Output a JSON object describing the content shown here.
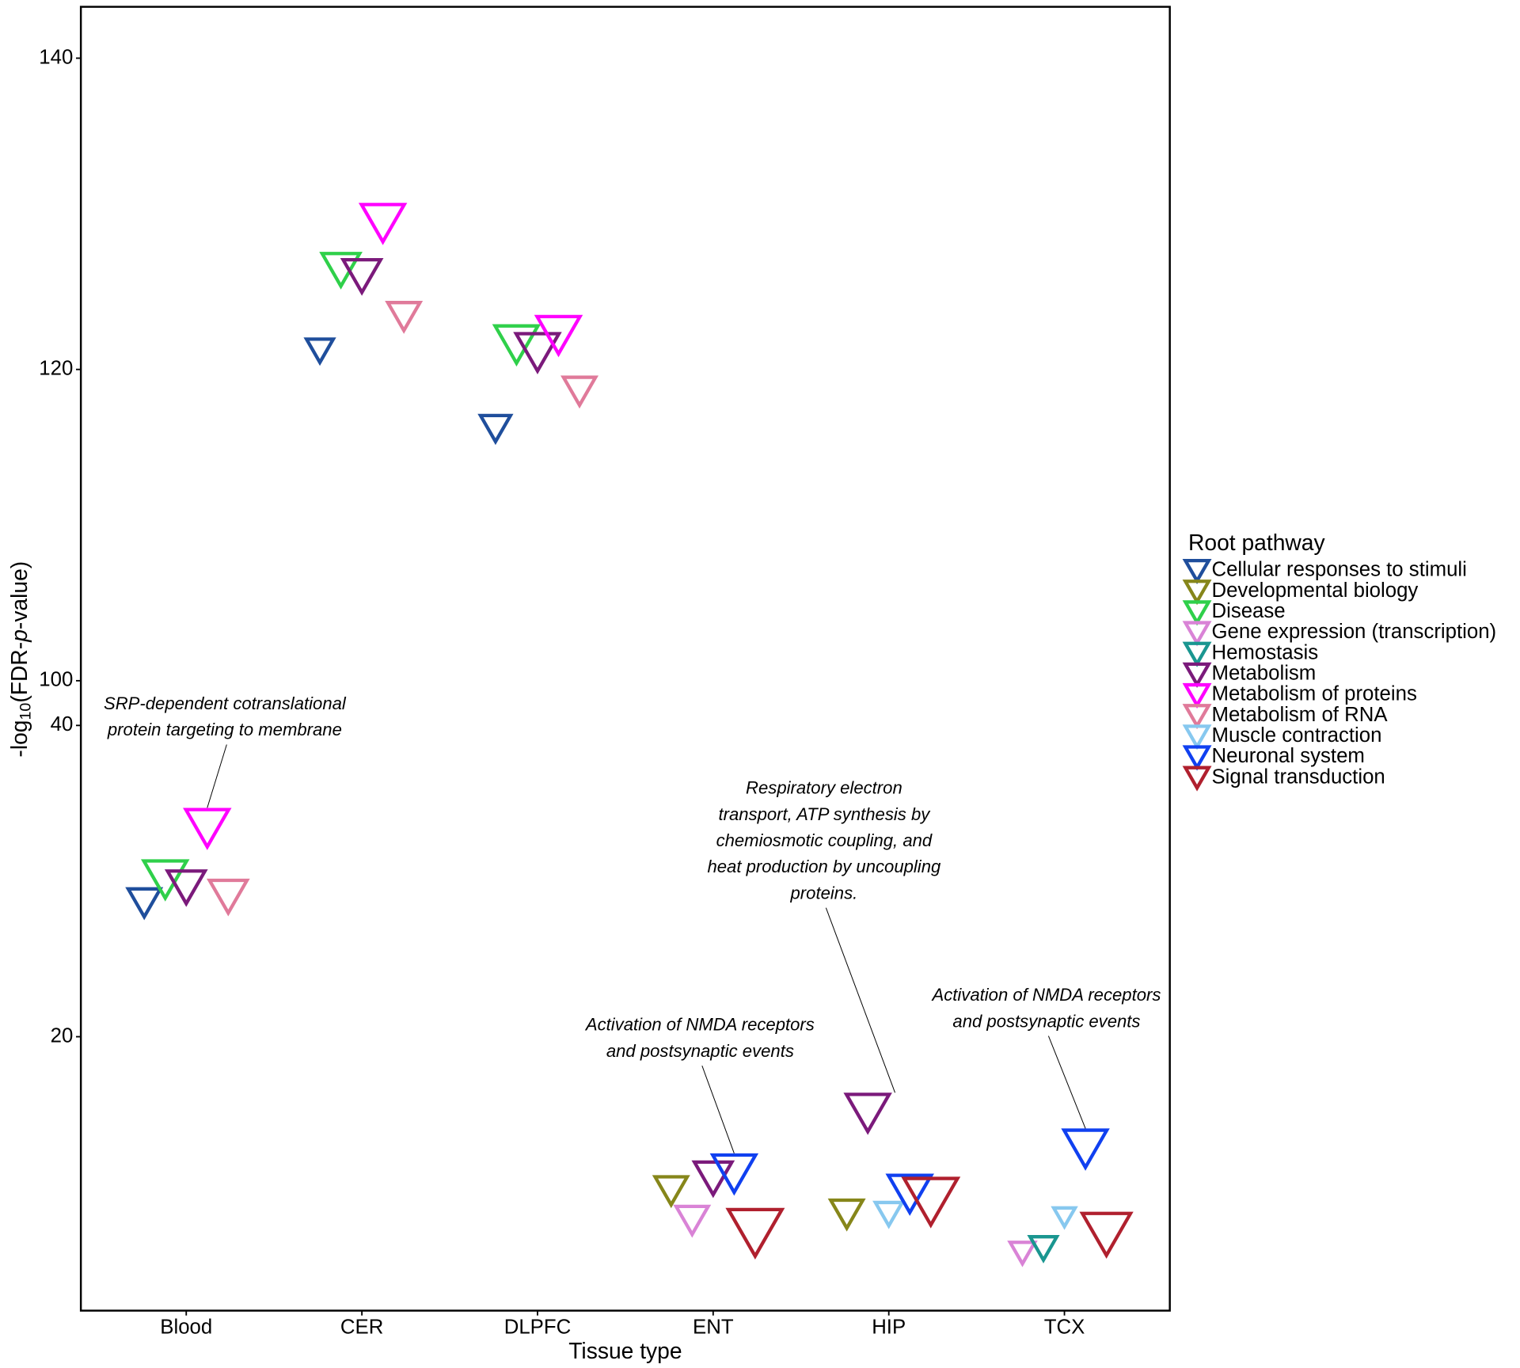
{
  "chart_data": {
    "type": "scatter",
    "xlabel": "Tissue type",
    "ylabel": [
      "-log",
      "10",
      "(FDR-",
      "p",
      "-value)"
    ],
    "categories": [
      "Blood",
      "CER",
      "DLPFC",
      "ENT",
      "HIP",
      "TCX"
    ],
    "ylim": [
      2.4,
      143.3
    ],
    "ybreak": [
      40,
      100
    ],
    "yticks": [
      20,
      40,
      100,
      120,
      140
    ],
    "legend_title": "Root pathway",
    "legend": "right",
    "series": [
      {
        "name": "Cellular responses to stimuli",
        "color": "#1f4e9c",
        "values": [
          28.6,
          121.2,
          116.2,
          null,
          null,
          null
        ],
        "sizes": [
          3,
          2.5,
          2.8,
          null,
          null,
          null
        ],
        "labels": [
          null,
          null,
          null,
          null,
          null,
          null
        ]
      },
      {
        "name": "Developmental biology",
        "color": "#86861a",
        "values": [
          null,
          null,
          null,
          10.1,
          8.6,
          null
        ],
        "sizes": [
          null,
          null,
          null,
          3,
          3,
          null
        ],
        "labels": [
          null,
          null,
          null,
          null,
          null,
          null
        ]
      },
      {
        "name": "Disease",
        "color": "#2fd04a",
        "values": [
          30.1,
          126.4,
          121.6,
          null,
          null,
          null
        ],
        "sizes": [
          4,
          3.5,
          4,
          null,
          null,
          null
        ],
        "labels": [
          null,
          null,
          null,
          null,
          null,
          null
        ]
      },
      {
        "name": "Gene expression (transcription)",
        "color": "#d983d6",
        "values": [
          null,
          null,
          null,
          8.2,
          null,
          6.1
        ],
        "sizes": [
          null,
          null,
          null,
          3,
          null,
          2.3
        ],
        "labels": [
          null,
          null,
          null,
          null,
          null,
          null
        ]
      },
      {
        "name": "Hemostasis",
        "color": "#1a9690",
        "values": [
          null,
          null,
          null,
          null,
          null,
          6.4
        ],
        "sizes": [
          null,
          null,
          null,
          null,
          null,
          2.5
        ],
        "labels": [
          null,
          null,
          null,
          null,
          null,
          null
        ]
      },
      {
        "name": "Metabolism",
        "color": "#7b1a7b",
        "values": [
          29.6,
          126.0,
          121.1,
          10.9,
          15.1,
          null
        ],
        "sizes": [
          3.5,
          3.5,
          4,
          3.5,
          4,
          null
        ],
        "labels": [
          null,
          null,
          null,
          null,
          [
            "Respiratory electron",
            "transport, ATP synthesis by",
            "chemiosmotic coupling, and",
            "heat production by uncoupling",
            "proteins."
          ],
          null
        ]
      },
      {
        "name": "Metabolism of proteins",
        "color": "#ff00ff",
        "values": [
          33.4,
          129.4,
          122.2,
          null,
          null,
          null
        ],
        "sizes": [
          4,
          4,
          4,
          null,
          null,
          null
        ],
        "labels": [
          [
            "SRP-dependent cotranslational",
            "protein targeting to membrane"
          ],
          null,
          null,
          null,
          null,
          null
        ]
      },
      {
        "name": "Metabolism of RNA",
        "color": "#e07a9a",
        "values": [
          29.0,
          123.4,
          118.6,
          null,
          null,
          null
        ],
        "sizes": [
          3.5,
          3,
          3,
          null,
          null,
          null
        ],
        "labels": [
          null,
          null,
          null,
          null,
          null,
          null
        ]
      },
      {
        "name": "Muscle contraction",
        "color": "#87c8ef",
        "values": [
          null,
          null,
          null,
          null,
          8.6,
          8.4
        ],
        "sizes": [
          null,
          null,
          null,
          null,
          2.5,
          2
        ],
        "labels": [
          null,
          null,
          null,
          null,
          null,
          null
        ]
      },
      {
        "name": "Neuronal system",
        "color": "#1040f0",
        "values": [
          null,
          null,
          null,
          11.2,
          9.9,
          12.8
        ],
        "sizes": [
          null,
          null,
          null,
          4,
          4,
          4
        ],
        "labels": [
          null,
          null,
          null,
          [
            "Activation of NMDA receptors",
            "and postsynaptic events"
          ],
          null,
          [
            "Activation of NMDA receptors",
            "and postsynaptic events"
          ]
        ]
      },
      {
        "name": "Signal transduction",
        "color": "#b0202e",
        "values": [
          null,
          null,
          null,
          7.4,
          9.4,
          7.3
        ],
        "sizes": [
          null,
          null,
          null,
          5,
          5,
          4.5
        ],
        "labels": [
          null,
          null,
          null,
          null,
          null,
          null
        ]
      }
    ]
  }
}
